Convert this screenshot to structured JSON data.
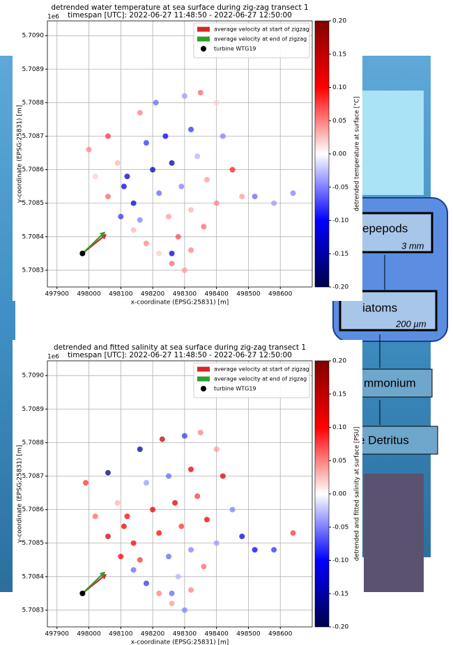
{
  "background": {
    "box1": "epepods",
    "box1_size": "3 mm",
    "box2": "iatoms",
    "box2_size": "200 µm",
    "box3": "mmonium",
    "box4": "e Detritus"
  },
  "chart_data": [
    {
      "type": "scatter",
      "title": "detrended water temperature at sea surface during zig-zag transect 1",
      "subtitle": "timespan [UTC]: 2022-06-27 11:48:50 - 2022-06-27 12:50:00",
      "x_label": "x-coordinate (EPSG:25831) [m]",
      "y_label": "y-coordinate (EPSG:25831) [m]",
      "y_offset_label": "1e6",
      "colorbar_label": "detrended temperature at surface [°C]",
      "colormap": "seismic",
      "x": [
        498000,
        498020,
        498060,
        498100,
        498140,
        498180,
        498220,
        498260,
        498300,
        498060,
        498090,
        498110,
        498140,
        498160,
        498160,
        498180,
        498200,
        498220,
        498250,
        498280,
        498320,
        498210,
        498240,
        498260,
        498290,
        498320,
        498360,
        498300,
        498320,
        498340,
        498370,
        498400,
        498350,
        498400,
        498420,
        498450,
        498480,
        498520,
        498580,
        498640,
        498120,
        498260
      ],
      "y": [
        5.70866,
        5.70858,
        5.70852,
        5.70846,
        5.70842,
        5.70838,
        5.70835,
        5.70832,
        5.7083,
        5.7087,
        5.70862,
        5.70855,
        5.7085,
        5.70845,
        5.70877,
        5.70868,
        5.7086,
        5.70853,
        5.70846,
        5.7084,
        5.70836,
        5.7088,
        5.7087,
        5.70862,
        5.70855,
        5.70848,
        5.70843,
        5.70882,
        5.70872,
        5.70864,
        5.70857,
        5.7085,
        5.70883,
        5.7088,
        5.7087,
        5.7086,
        5.70852,
        5.70852,
        5.7085,
        5.70853,
        5.70858,
        5.70835
      ],
      "c": [
        0.05,
        0.02,
        0.06,
        -0.08,
        0.03,
        0.05,
        0.02,
        0.06,
        0.04,
        0.08,
        0.03,
        -0.1,
        -0.12,
        -0.05,
        0.05,
        -0.08,
        -0.14,
        -0.06,
        0.04,
        0.07,
        0.05,
        -0.06,
        -0.1,
        -0.15,
        -0.05,
        0.03,
        0.06,
        -0.04,
        -0.08,
        -0.03,
        0.04,
        0.05,
        0.06,
        0.02,
        -0.05,
        0.09,
        0.04,
        -0.06,
        -0.04,
        -0.05,
        -0.13,
        -0.12
      ],
      "arrows": [
        {
          "name": "average velocity at start of zigzag",
          "color": "#d62728",
          "x": [
            497980,
            498052
          ],
          "y": [
            5.70835,
            5.708405
          ]
        },
        {
          "name": "average velocity at end of zigzag",
          "color": "#2ca02c",
          "x": [
            497980,
            498048
          ],
          "y": [
            5.70835,
            5.708412
          ]
        }
      ],
      "turbine": {
        "name": "turbine WTG19",
        "color": "#000000",
        "x": 497980,
        "y": 5.70835
      },
      "legend": "upper right",
      "grid": true,
      "xlim": [
        497870,
        498700
      ],
      "ylim": [
        5.70825,
        5.709044
      ],
      "clim": [
        -0.2,
        0.2
      ],
      "xticks": [
        497900,
        498000,
        498100,
        498200,
        498300,
        498400,
        498500,
        498600
      ],
      "yticks": [
        {
          "value": 5.709,
          "label": "5.7090"
        },
        5.7089,
        5.7088,
        5.7087,
        5.7086,
        5.7085,
        5.7084,
        5.7083
      ],
      "cticks": [
        {
          "value": 0.2,
          "label": "0.20"
        },
        0.15,
        {
          "value": 0.1,
          "label": "0.10"
        },
        0.05,
        {
          "value": 0,
          "label": "0.00"
        },
        -0.05,
        {
          "value": -0.1,
          "label": "-0.10"
        },
        -0.15,
        {
          "value": -0.2,
          "label": "-0.20"
        }
      ]
    },
    {
      "type": "scatter",
      "title": "detrended and fitted salinity at sea surface during zig-zag transect 1",
      "subtitle": "timespan [UTC]: 2022-06-27 11:48:50 - 2022-06-27 12:50:00",
      "x_label": "x-coordinate (EPSG:25831) [m]",
      "y_label": "y-coordinate (EPSG:25831) [m]",
      "y_offset_label": "1e6",
      "colorbar_label": "detrended and fitted salinity at surface [PSU]",
      "colormap": "seismic",
      "x": [
        497990,
        498020,
        498060,
        498100,
        498140,
        498180,
        498220,
        498260,
        498300,
        498060,
        498090,
        498110,
        498140,
        498160,
        498160,
        498180,
        498200,
        498220,
        498250,
        498280,
        498320,
        498230,
        498250,
        498270,
        498290,
        498320,
        498360,
        498300,
        498320,
        498340,
        498370,
        498400,
        498350,
        498400,
        498420,
        498450,
        498480,
        498520,
        498580,
        498640,
        498120,
        498260
      ],
      "y": [
        5.70868,
        5.70858,
        5.70852,
        5.70846,
        5.70842,
        5.70838,
        5.70835,
        5.70832,
        5.7083,
        5.70871,
        5.70862,
        5.70855,
        5.7085,
        5.70845,
        5.70878,
        5.70868,
        5.7086,
        5.70853,
        5.70846,
        5.7084,
        5.70836,
        5.70881,
        5.7087,
        5.70862,
        5.70855,
        5.70848,
        5.70843,
        5.70882,
        5.70872,
        5.70864,
        5.70857,
        5.7085,
        5.70883,
        5.70878,
        5.7087,
        5.7086,
        5.70852,
        5.70848,
        5.70848,
        5.70853,
        5.70858,
        5.70835
      ],
      "c": [
        0.08,
        0.06,
        0.14,
        0.1,
        -0.06,
        -0.08,
        0.05,
        0.04,
        -0.05,
        -0.18,
        0.03,
        0.12,
        0.1,
        0.08,
        -0.16,
        -0.04,
        0.12,
        0.1,
        -0.06,
        -0.03,
        0.05,
        0.14,
        -0.06,
        0.13,
        0.08,
        -0.05,
        0.06,
        -0.08,
        0.12,
        0.08,
        0.12,
        -0.04,
        0.05,
        0.04,
        0.13,
        -0.05,
        -0.12,
        -0.1,
        -0.08,
        0.08,
        0.1,
        -0.06
      ],
      "arrows": [
        {
          "name": "average velocity at start of zigzag",
          "color": "#d62728",
          "x": [
            497980,
            498052
          ],
          "y": [
            5.70835,
            5.708405
          ]
        },
        {
          "name": "average velocity at end of zigzag",
          "color": "#2ca02c",
          "x": [
            497980,
            498048
          ],
          "y": [
            5.70835,
            5.708412
          ]
        }
      ],
      "turbine": {
        "name": "turbine WTG19",
        "color": "#000000",
        "x": 497980,
        "y": 5.70835
      },
      "legend": "upper right",
      "grid": true,
      "xlim": [
        497870,
        498700
      ],
      "ylim": [
        5.70825,
        5.709044
      ],
      "clim": [
        -0.2,
        0.2
      ],
      "xticks": [
        497900,
        498000,
        498100,
        498200,
        498300,
        498400,
        498500,
        498600
      ],
      "yticks": [
        {
          "value": 5.709,
          "label": "5.7090"
        },
        5.7089,
        5.7088,
        5.7087,
        5.7086,
        5.7085,
        5.7084,
        5.7083
      ],
      "cticks": [
        {
          "value": 0.2,
          "label": "0.20"
        },
        0.15,
        {
          "value": 0.1,
          "label": "0.10"
        },
        0.05,
        {
          "value": 0,
          "label": "0.00"
        },
        -0.05,
        {
          "value": -0.1,
          "label": "-0.10"
        },
        -0.15,
        {
          "value": -0.2,
          "label": "-0.20"
        }
      ]
    }
  ]
}
